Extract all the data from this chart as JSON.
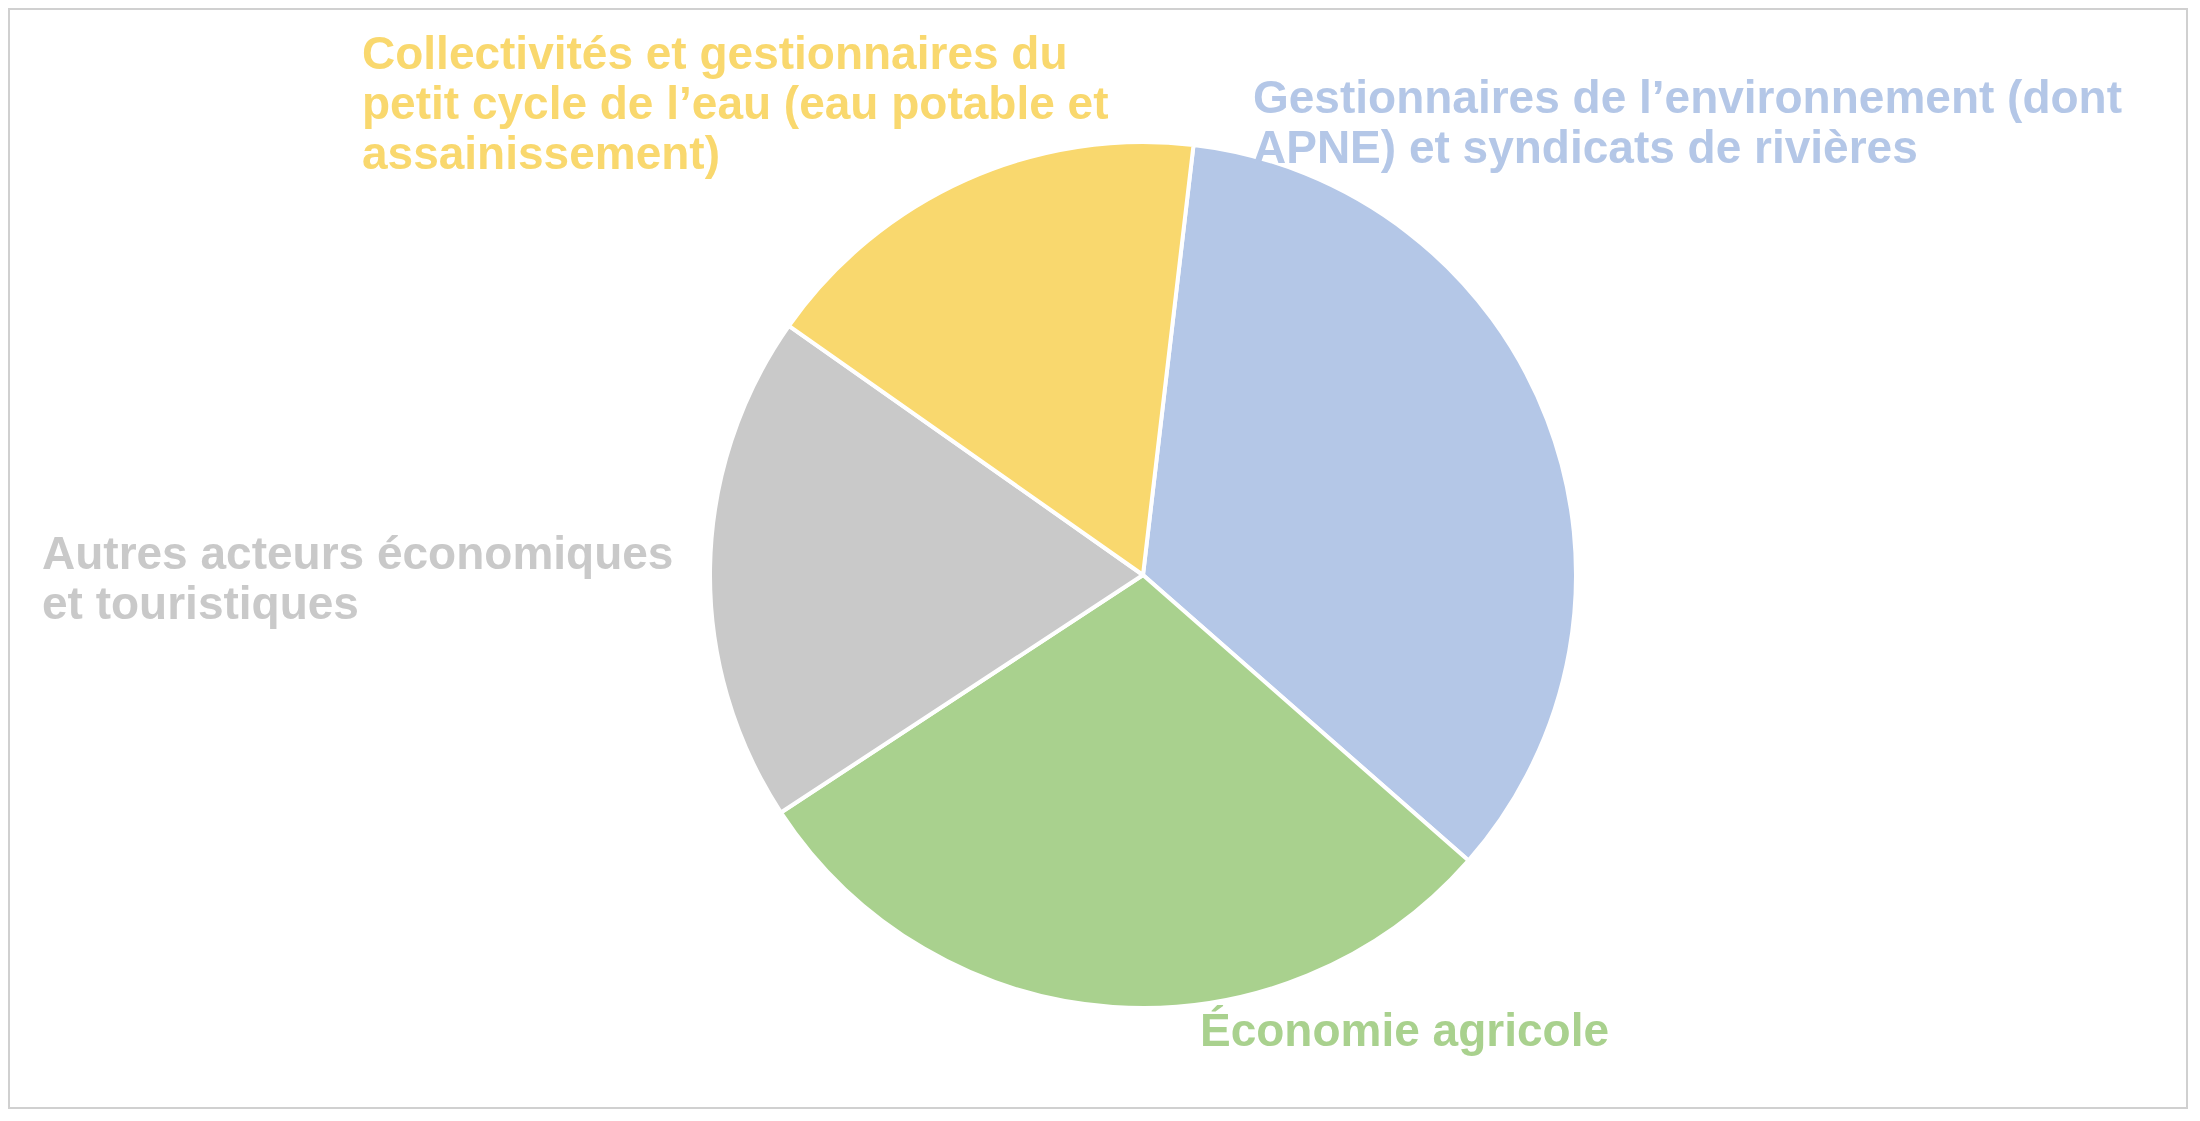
{
  "chart_data": {
    "type": "pie",
    "categories": [
      "Gestionnaires de l’environnement (dont APNE) et syndicats de rivières",
      "Économie agricole",
      "Autres acteurs économiques et touristiques",
      "Collectivités et gestionnaires du petit cycle de l’eau (eau potable et assainissement)"
    ],
    "values": [
      34.6,
      29.3,
      19.0,
      17.1
    ],
    "colors": [
      "#b4c7e7",
      "#a9d18e",
      "#c9c9c9",
      "#f9d86e"
    ],
    "legend": false
  }
}
